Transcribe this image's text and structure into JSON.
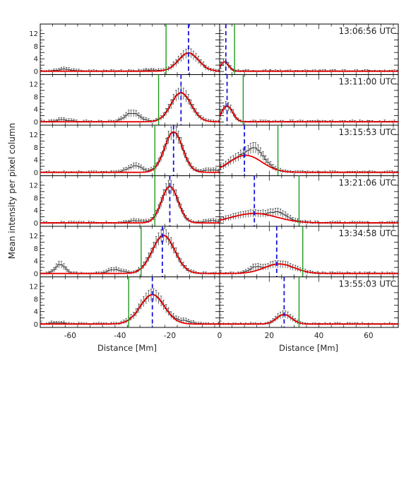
{
  "figure": {
    "ylabel": "Mean intensity per pixel column",
    "left_xlabel": "Distance [Mm]",
    "right_xlabel": "Distance [Mm]"
  },
  "chart_data": {
    "type": "line",
    "layout": "6 rows x 2 columns of panels sharing axes",
    "left_xlim": [
      -72,
      0
    ],
    "right_xlim": [
      0,
      72
    ],
    "left_xticks": [
      -60,
      -40,
      -20,
      0
    ],
    "right_xticks": [
      20,
      40,
      60
    ],
    "ylim": [
      -1,
      15
    ],
    "yticks": [
      0,
      2,
      4,
      6,
      8,
      10,
      12
    ],
    "series_colors": {
      "data": "#000000",
      "fit": "#e60000",
      "center": "#1515d6",
      "boundary": "#1f9a1f"
    },
    "panels": [
      {
        "time": "13:06:56 UTC",
        "left": {
          "boundary": -21.5,
          "center": -12.5,
          "peaks": [
            [
              -12.5,
              5.8,
              4.0,
              0.1
            ]
          ],
          "bumps": [
            [
              -62,
              0.6,
              3
            ],
            [
              -28,
              0.4,
              3
            ]
          ]
        },
        "right": {
          "boundary": 6.0,
          "center": 2.5,
          "peaks": [
            [
              2.0,
              3.0,
              1.6,
              0.1
            ]
          ],
          "bumps": []
        }
      },
      {
        "time": "13:11:00 UTC",
        "left": {
          "boundary": -24.5,
          "center": -15.5,
          "peaks": [
            [
              -15.5,
              9.2,
              4.0,
              0.1
            ]
          ],
          "bumps": [
            [
              -35,
              2.8,
              3
            ],
            [
              -63,
              0.6,
              3
            ]
          ]
        },
        "right": {
          "boundary": 9.5,
          "center": 3.0,
          "peaks": [
            [
              3.0,
              5.0,
              2.2,
              0.1
            ]
          ],
          "bumps": []
        }
      },
      {
        "time": "13:15:53 UTC",
        "left": {
          "boundary": -26.0,
          "center": -18.5,
          "peaks": [
            [
              -18.5,
              12.8,
              3.6,
              0.1
            ]
          ],
          "bumps": [
            [
              -34,
              2.0,
              3
            ],
            [
              -4,
              0.8,
              3
            ]
          ]
        },
        "right": {
          "boundary": 23.5,
          "center": 10.0,
          "peaks": [
            [
              10.5,
              5.4,
              6.5,
              0.1
            ]
          ],
          "bumps": [
            [
              15,
              3.2,
              3
            ]
          ]
        },
        "right_fit_extra": []
      },
      {
        "time": "13:21:06 UTC",
        "left": {
          "boundary": -26.0,
          "center": -20.0,
          "peaks": [
            [
              -20.0,
              11.5,
              3.3,
              0.1
            ]
          ],
          "bumps": [
            [
              -33,
              0.7,
              3
            ],
            [
              -3,
              0.7,
              3
            ]
          ]
        },
        "right": {
          "boundary": 32.0,
          "center": 14.0,
          "peaks": [
            [
              14.0,
              3.0,
              9.0,
              0.1
            ]
          ],
          "bumps": [
            [
              24,
              1.8,
              3
            ]
          ]
        }
      },
      {
        "time": "13:34:58 UTC",
        "left": {
          "boundary": -31.5,
          "center": -23.0,
          "peaks": [
            [
              -22.5,
              12.0,
              4.5,
              0.1
            ]
          ],
          "bumps": [
            [
              -64,
              2.8,
              2
            ],
            [
              -42,
              1.2,
              3
            ]
          ]
        },
        "right": {
          "boundary": 33.5,
          "center": 23.0,
          "peaks": [
            [
              24.0,
              3.0,
              6.0,
              0.1
            ]
          ],
          "bumps": [
            [
              14,
              1.4,
              2
            ]
          ]
        }
      },
      {
        "time": "13:55:03 UTC",
        "left": {
          "boundary": -36.5,
          "center": -27.0,
          "peaks": [
            [
              -27.0,
              9.3,
              4.8,
              0.1
            ]
          ],
          "bumps": [
            [
              -14,
              0.8,
              3
            ],
            [
              -65,
              0.4,
              3
            ]
          ]
        },
        "right": {
          "boundary": 32.0,
          "center": 26.0,
          "peaks": [
            [
              26.0,
              3.0,
              3.0,
              0.1
            ]
          ],
          "bumps": []
        }
      }
    ]
  }
}
